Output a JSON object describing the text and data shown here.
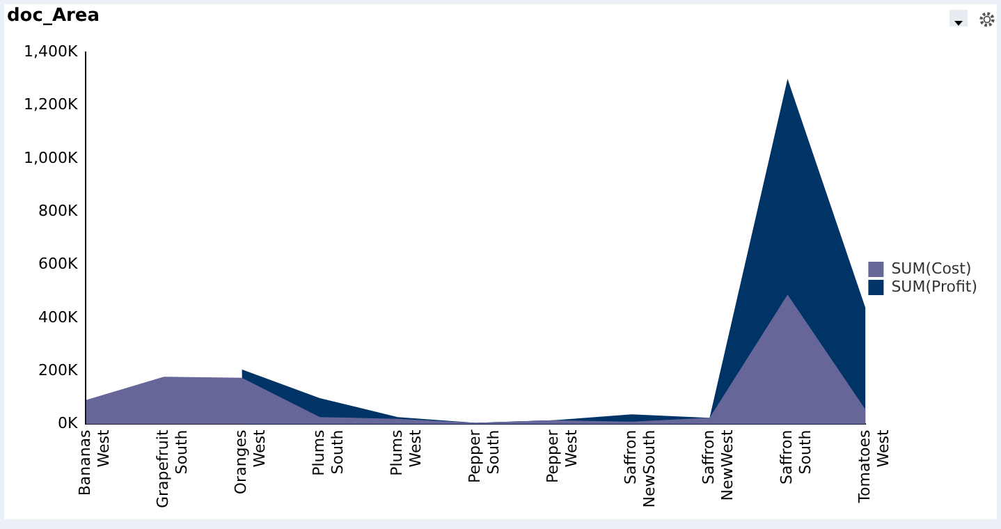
{
  "chart_data": {
    "type": "area",
    "title": "doc_Area",
    "categories": [
      "Bananas\nWest",
      "Grapefruit\nSouth",
      "Oranges\nWest",
      "Plums\nSouth",
      "Plums\nWest",
      "Pepper\nSouth",
      "Pepper\nWest",
      "Saffron\nNewSouth",
      "Saffron\nNewWest",
      "Saffron\nSouth",
      "Tomatoes\nWest"
    ],
    "series": [
      {
        "name": "SUM(Profit)",
        "color": "#003366",
        "values": [
          null,
          null,
          206,
          98,
          27,
          5,
          15,
          37,
          24,
          1300,
          437
        ]
      },
      {
        "name": "SUM(Cost)",
        "color": "#666699",
        "values": [
          91,
          179,
          175,
          27,
          20,
          5,
          15,
          10,
          24,
          488,
          55
        ]
      }
    ],
    "ylim": [
      0,
      1400
    ],
    "yticks": [
      {
        "value": 0,
        "label": "0K"
      },
      {
        "value": 200,
        "label": "200K"
      },
      {
        "value": 400,
        "label": "400K"
      },
      {
        "value": 600,
        "label": "600K"
      },
      {
        "value": 800,
        "label": "800K"
      },
      {
        "value": 1000,
        "label": "1,000K"
      },
      {
        "value": 1200,
        "label": "1,200K"
      },
      {
        "value": 1400,
        "label": "1,400K"
      }
    ],
    "grid": false,
    "legend": "right"
  }
}
